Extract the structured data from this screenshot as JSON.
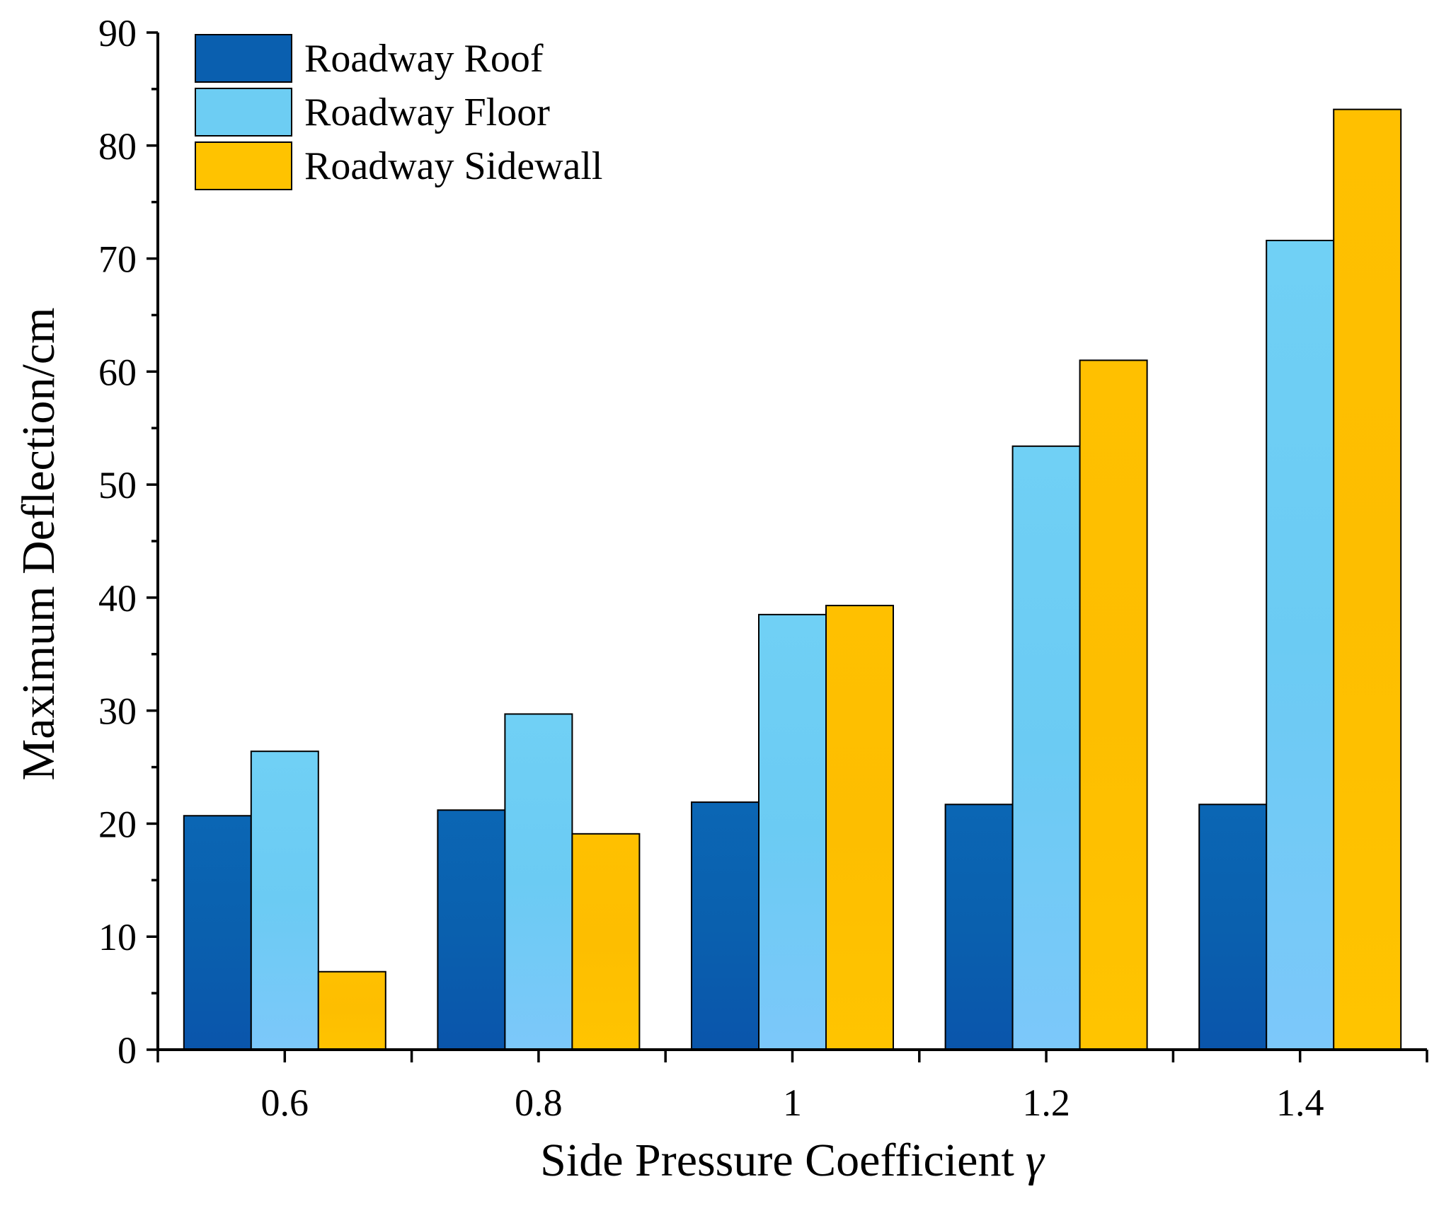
{
  "chart_data": {
    "type": "bar",
    "title": "",
    "xlabel": "Side Pressure Coefficient",
    "xlabel_symbol": "γ",
    "ylabel": "Maximum Deflection/cm",
    "categories": [
      "0.6",
      "0.8",
      "1",
      "1.2",
      "1.4"
    ],
    "ylim": [
      0,
      90
    ],
    "yticks": [
      "0",
      "10",
      "20",
      "30",
      "40",
      "50",
      "60",
      "70",
      "80",
      "90"
    ],
    "series": [
      {
        "name": "Roadway Roof",
        "color": "#0A5FAF",
        "values": [
          20.7,
          21.2,
          21.9,
          21.7,
          21.7
        ]
      },
      {
        "name": "Roadway Floor",
        "color": "#6DCDF3",
        "values": [
          26.4,
          29.7,
          38.5,
          53.4,
          71.6
        ]
      },
      {
        "name": "Roadway Sidewall",
        "color": "#FFC300",
        "values": [
          6.9,
          19.1,
          39.3,
          61.0,
          83.2
        ]
      }
    ],
    "legend_position": "top-left",
    "grid": false
  }
}
